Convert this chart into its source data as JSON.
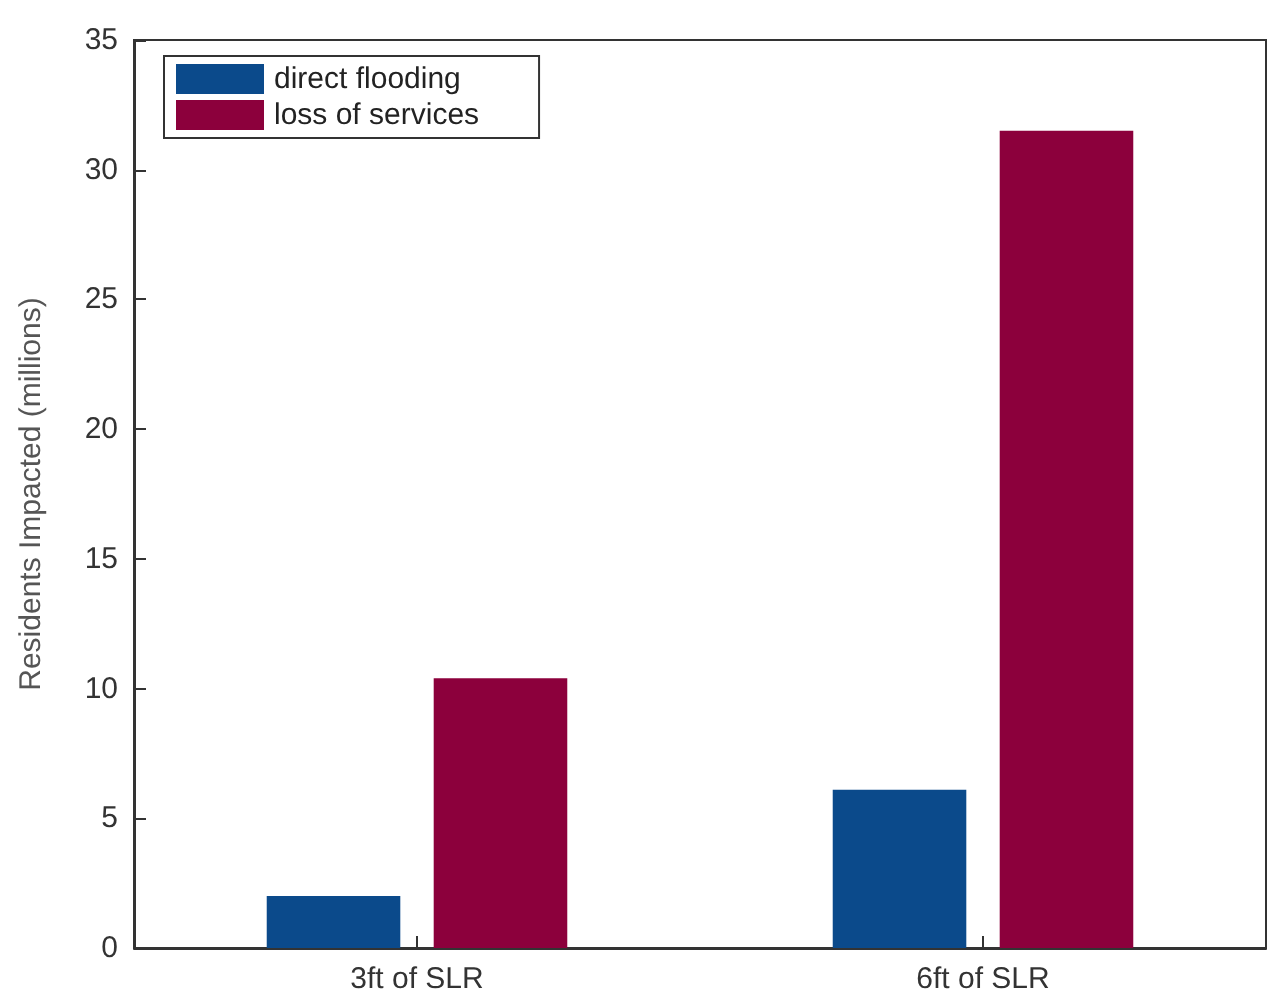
{
  "chart_data": {
    "type": "bar",
    "ylabel": "Residents Impacted (millions)",
    "categories": [
      "3ft of SLR",
      "6ft of SLR"
    ],
    "series": [
      {
        "name": "direct flooding",
        "color": "#0b4a8b",
        "values": [
          2.0,
          6.1
        ]
      },
      {
        "name": "loss of services",
        "color": "#8c003c",
        "values": [
          10.4,
          31.5
        ]
      }
    ],
    "ylim": [
      0,
      35
    ],
    "yticks": [
      0,
      5,
      10,
      15,
      20,
      25,
      30,
      35
    ],
    "grid": false,
    "legend": "top left"
  }
}
